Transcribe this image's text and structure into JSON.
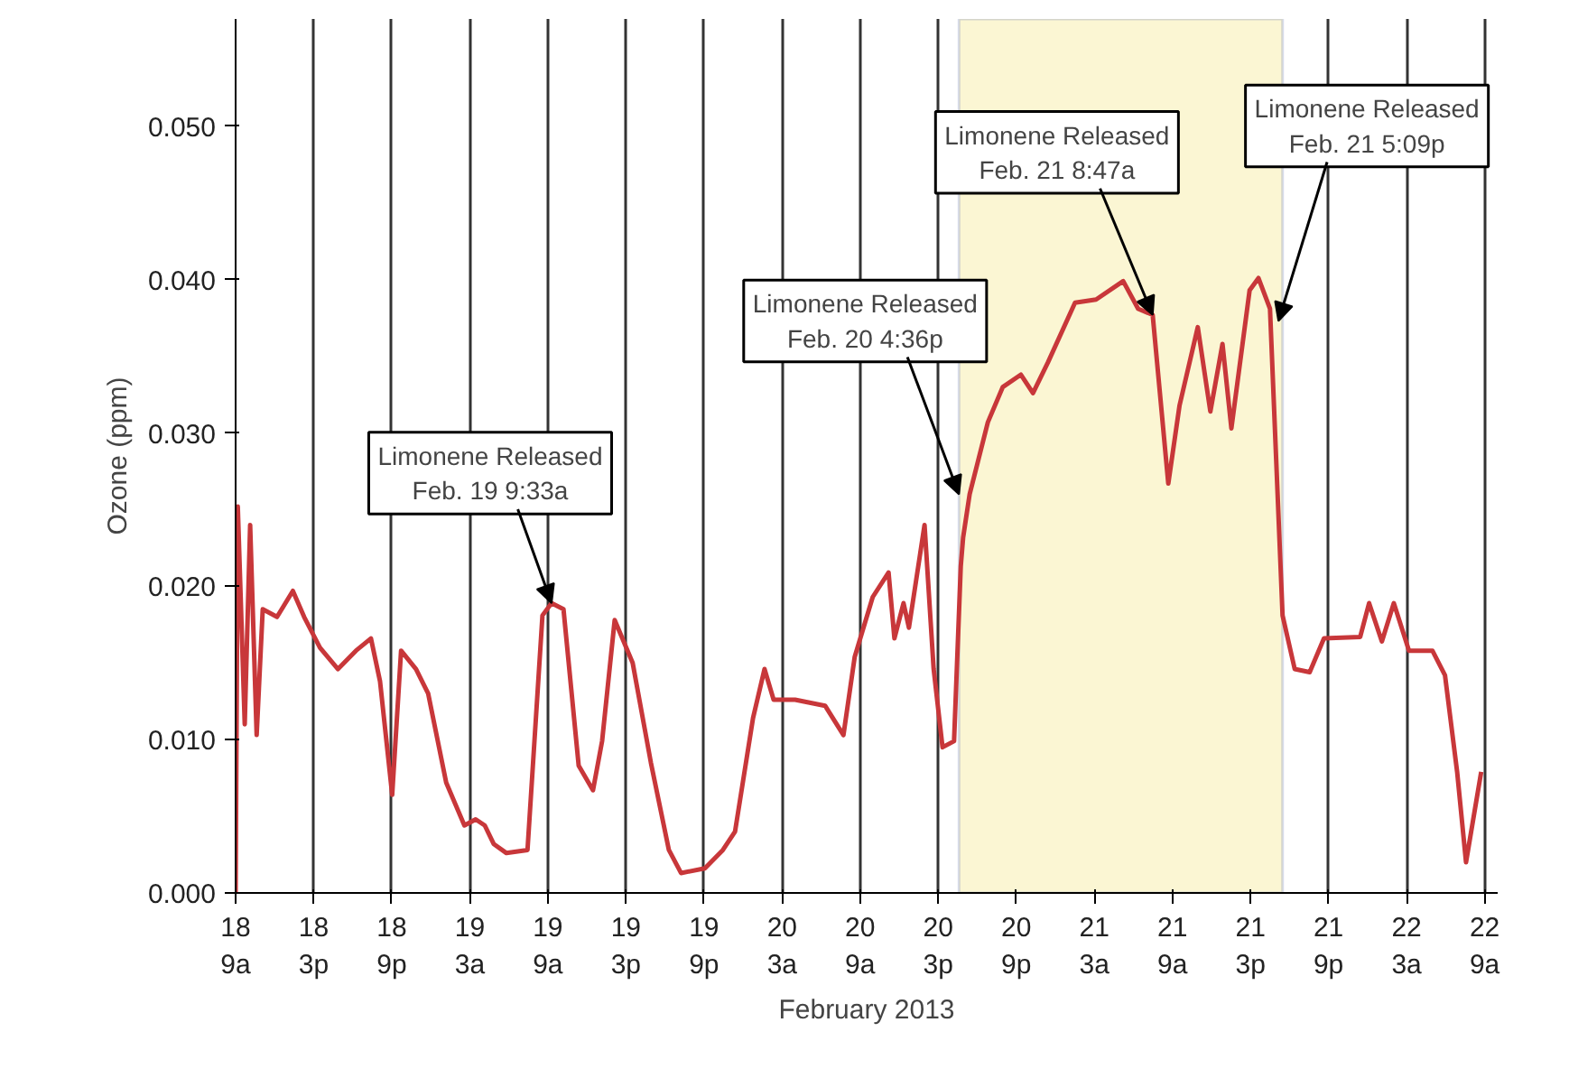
{
  "chart_data": {
    "type": "line",
    "xlabel": "February 2013",
    "ylabel": "Ozone (ppm)",
    "x": [
      "2013-02-18T09:00",
      "2013-02-18T09:10",
      "2013-02-18T09:42",
      "2013-02-18T10:07",
      "2013-02-18T10:37",
      "2013-02-18T11:05",
      "2013-02-18T12:11",
      "2013-02-18T13:24",
      "2013-02-18T14:16",
      "2013-02-18T15:29",
      "2013-02-18T16:52",
      "2013-02-18T18:15",
      "2013-02-18T19:24",
      "2013-02-18T20:06",
      "2013-02-18T21:02",
      "2013-02-18T21:43",
      "2013-02-18T22:52",
      "2013-02-18T23:48",
      "2013-02-19T01:11",
      "2013-02-19T02:35",
      "2013-02-19T03:27",
      "2013-02-19T04:09",
      "2013-02-19T04:50",
      "2013-02-19T05:49",
      "2013-02-19T07:26",
      "2013-02-19T08:35",
      "2013-02-19T09:17",
      "2013-02-19T10:12",
      "2013-02-19T11:22",
      "2013-02-19T12:28",
      "2013-02-19T13:10",
      "2013-02-19T14:08",
      "2013-02-19T15:31",
      "2013-02-19T16:55",
      "2013-02-19T18:18",
      "2013-02-19T19:14",
      "2013-02-19T21:04",
      "2013-02-19T22:27",
      "2013-02-19T23:23",
      "2013-02-20T00:46",
      "2013-02-20T01:39",
      "2013-02-20T02:21",
      "2013-02-20T04:00",
      "2013-02-20T06:19",
      "2013-02-20T07:43",
      "2013-02-20T08:35",
      "2013-02-20T09:58",
      "2013-02-20T11:11",
      "2013-02-20T11:38",
      "2013-02-20T12:20",
      "2013-02-20T12:45",
      "2013-02-20T13:57",
      "2013-02-20T14:39",
      "2013-02-20T15:20",
      "2013-02-20T16:13",
      "2013-02-20T16:44",
      "2013-02-20T16:55",
      "2013-02-20T17:25",
      "2013-02-20T18:49",
      "2013-02-20T19:58",
      "2013-02-20T21:21",
      "2013-02-20T22:17",
      "2013-02-20T23:26",
      "2013-02-21T01:31",
      "2013-02-21T03:08",
      "2013-02-21T05:13",
      "2013-02-21T06:22",
      "2013-02-21T07:29",
      "2013-02-21T08:41",
      "2013-02-21T09:33",
      "2013-02-21T10:57",
      "2013-02-21T11:55",
      "2013-02-21T12:51",
      "2013-02-21T13:32",
      "2013-02-21T14:56",
      "2013-02-21T15:37",
      "2013-02-21T16:30",
      "2013-02-21T17:28",
      "2013-02-21T18:24",
      "2013-02-21T19:33",
      "2013-02-21T20:39",
      "2013-02-21T23:26",
      "2013-02-22T00:07",
      "2013-02-22T01:06",
      "2013-02-22T02:01",
      "2013-02-22T03:11",
      "2013-02-22T04:59",
      "2013-02-22T05:57",
      "2013-02-22T06:53",
      "2013-02-22T07:34",
      "2013-02-22T08:44"
    ],
    "series": [
      {
        "color": "#c8373a",
        "values": [
          0.0,
          0.0252,
          0.011,
          0.024,
          0.0103,
          0.0185,
          0.018,
          0.0197,
          0.018,
          0.016,
          0.0146,
          0.0158,
          0.0166,
          0.0138,
          0.0064,
          0.0158,
          0.0146,
          0.013,
          0.0072,
          0.0044,
          0.0048,
          0.0044,
          0.0032,
          0.0026,
          0.0028,
          0.0181,
          0.0189,
          0.0185,
          0.0083,
          0.0067,
          0.0099,
          0.0178,
          0.015,
          0.0085,
          0.0028,
          0.0013,
          0.0016,
          0.0028,
          0.004,
          0.0114,
          0.0146,
          0.0126,
          0.0126,
          0.0122,
          0.0103,
          0.0154,
          0.0193,
          0.0209,
          0.0166,
          0.0189,
          0.0173,
          0.024,
          0.0146,
          0.0095,
          0.0099,
          0.0213,
          0.0232,
          0.026,
          0.0307,
          0.033,
          0.0338,
          0.0326,
          0.0346,
          0.0385,
          0.0387,
          0.0399,
          0.0381,
          0.0377,
          0.0267,
          0.0318,
          0.0369,
          0.0314,
          0.0358,
          0.0303,
          0.0393,
          0.0401,
          0.0381,
          0.0181,
          0.0146,
          0.0144,
          0.0166,
          0.0167,
          0.0189,
          0.0164,
          0.0189,
          0.0158,
          0.0158,
          0.0142,
          0.0079,
          0.002,
          0.0079
        ]
      }
    ],
    "xlim": [
      "2013-02-18T09:00",
      "2013-02-22T10:00"
    ],
    "xticks": [
      {
        "value": "2013-02-18T09:00",
        "label": "18\n9a"
      },
      {
        "value": "2013-02-18T15:00",
        "label": "18\n3p"
      },
      {
        "value": "2013-02-18T21:00",
        "label": "18\n9p"
      },
      {
        "value": "2013-02-19T03:00",
        "label": "19\n3a"
      },
      {
        "value": "2013-02-19T09:00",
        "label": "19\n9a"
      },
      {
        "value": "2013-02-19T15:00",
        "label": "19\n3p"
      },
      {
        "value": "2013-02-19T21:00",
        "label": "19\n9p"
      },
      {
        "value": "2013-02-20T03:00",
        "label": "20\n3a"
      },
      {
        "value": "2013-02-20T09:00",
        "label": "20\n9a"
      },
      {
        "value": "2013-02-20T15:00",
        "label": "20\n3p"
      },
      {
        "value": "2013-02-20T21:00",
        "label": "20\n9p"
      },
      {
        "value": "2013-02-21T03:00",
        "label": "21\n3a"
      },
      {
        "value": "2013-02-21T09:00",
        "label": "21\n9a"
      },
      {
        "value": "2013-02-21T15:00",
        "label": "21\n3p"
      },
      {
        "value": "2013-02-21T21:00",
        "label": "21\n9p"
      },
      {
        "value": "2013-02-22T03:00",
        "label": "22\n3a"
      },
      {
        "value": "2013-02-22T09:00",
        "label": "22\n9a"
      }
    ],
    "ylim": [
      0,
      0.057
    ],
    "yticks": [
      {
        "value": 0,
        "label": "0.000"
      },
      {
        "value": 0.01,
        "label": "0.010"
      },
      {
        "value": 0.02,
        "label": "0.020"
      },
      {
        "value": 0.03,
        "label": "0.030"
      },
      {
        "value": 0.04,
        "label": "0.040"
      },
      {
        "value": 0.05,
        "label": "0.050"
      }
    ],
    "grid": "x",
    "bands": [
      {
        "axis": "x",
        "from": "2013-02-20T16:36",
        "to": "2013-02-21T17:28",
        "color": "#fbf6d3"
      }
    ],
    "annotations": [
      {
        "text": "Limonene Released\nFeb. 19 9:33a",
        "x": "2013-02-19T09:17",
        "y": 0.0189
      },
      {
        "text": "Limonene Released\nFeb. 20 4:36p",
        "x": "2013-02-20T16:36",
        "y": 0.026
      },
      {
        "text": "Limonene Released\nFeb. 21 8:47a",
        "x": "2013-02-21T07:29",
        "y": 0.0377
      },
      {
        "text": "Limonene Released\nFeb. 21 5:09p",
        "x": "2013-02-21T17:09",
        "y": 0.0373
      }
    ]
  }
}
